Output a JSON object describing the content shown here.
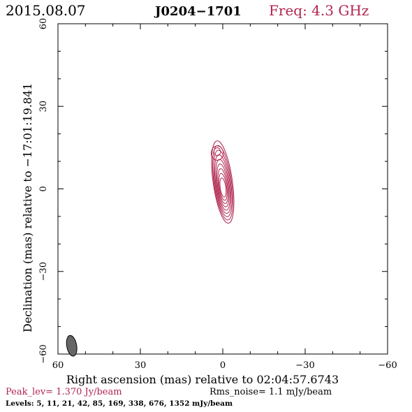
{
  "header": {
    "date": "2015.08.07",
    "source": "J0204−1701",
    "freq_label": "Freq:  4.3 GHz"
  },
  "colors": {
    "contour": "#b0254f",
    "beam": "#666666",
    "text_red": "#b0254f"
  },
  "chart_data": {
    "type": "contour",
    "xlabel": "Right ascension (mas) relative to 02:04:57.6743",
    "ylabel": "Declination (mas) relative to −17:01:19.841",
    "xlim": [
      60,
      -60
    ],
    "ylim": [
      -60,
      60
    ],
    "x_ticks": [
      60,
      30,
      0,
      -30,
      -60
    ],
    "x_tick_labels": [
      "60",
      "30",
      "0",
      "−30",
      "−60"
    ],
    "y_ticks": [
      -60,
      -30,
      0,
      30,
      60
    ],
    "y_tick_labels": [
      "−60",
      "−30",
      "0",
      "30",
      "60"
    ],
    "contour_levels_mjy_per_beam": [
      5,
      11,
      21,
      42,
      85,
      169,
      338,
      676,
      1352
    ],
    "peak_jy_per_beam": 1.37,
    "rms_noise_mjy_per_beam": 1.1,
    "core": {
      "ra": 0,
      "dec": 0
    },
    "jet_component": {
      "ra": 2,
      "dec": 13
    },
    "beam": {
      "ra": 55,
      "dec": -57,
      "major": 3.8,
      "minor": 1.8,
      "pa": -10
    }
  },
  "footer": {
    "peak": "Peak_lev=  1.370 Jy/beam",
    "rms": "Rms_noise=  1.1 mJy/beam",
    "levels": "Levels:   5,  11,  21,  42,  85,  169,  338,  676,  1352 mJy/beam"
  }
}
